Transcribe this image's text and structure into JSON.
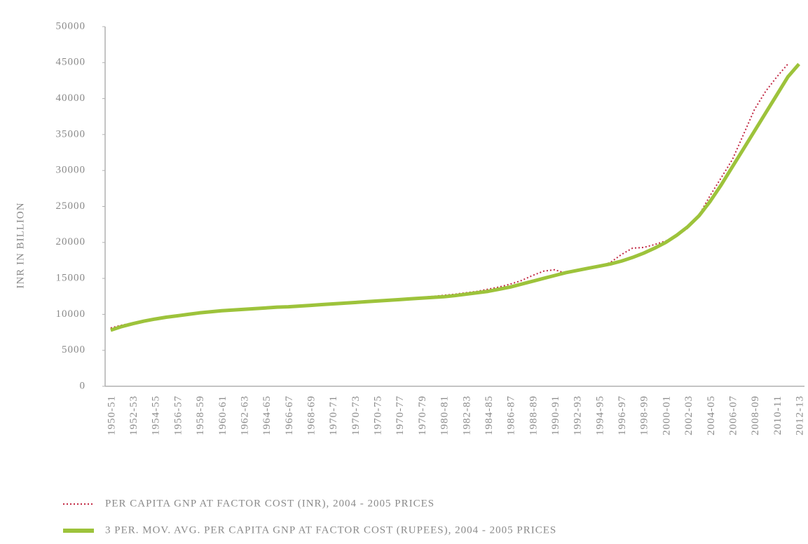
{
  "chart_data": {
    "type": "line",
    "y_label": "INR IN BILLION",
    "categories": [
      "1950-51",
      null,
      "1952-53",
      null,
      "1954-55",
      null,
      "1956-57",
      null,
      "1958-59",
      null,
      "1960-61",
      null,
      "1962-63",
      null,
      "1964-65",
      null,
      "1966-67",
      null,
      "1968-69",
      null,
      "1970-71",
      null,
      "1970-73",
      null,
      "1970-75",
      null,
      "1970-77",
      null,
      "1970-79",
      null,
      "1980-81",
      null,
      "1982-83",
      null,
      "1984-85",
      null,
      "1986-87",
      null,
      "1988-89",
      null,
      "1990-91",
      null,
      "1992-93",
      null,
      "1994-95",
      null,
      "1996-97",
      null,
      "1998-99",
      null,
      "2000-01",
      null,
      "2002-03",
      null,
      "2004-05",
      null,
      "2006-07",
      null,
      "2008-09",
      null,
      "2010-11",
      null,
      "2012-13"
    ],
    "series": [
      {
        "name": "PER CAPITA GNP AT FACTOR COST (INR), 2004 - 2005 PRICES",
        "color": "#c22a45",
        "style": "dotted",
        "values": [
          8100,
          8500,
          8800,
          9100,
          9400,
          9650,
          9850,
          10050,
          10250,
          10450,
          10600,
          10700,
          10800,
          10900,
          11000,
          11100,
          11150,
          11200,
          11300,
          11400,
          11500,
          11600,
          11700,
          11800,
          11900,
          12000,
          12100,
          12200,
          12350,
          12500,
          12650,
          12800,
          13000,
          13200,
          13500,
          13800,
          14200,
          14700,
          15400,
          16000,
          16200,
          15700,
          16000,
          16300,
          16700,
          17200,
          18300,
          19200,
          19300,
          19700,
          20200,
          20900,
          22000,
          23800,
          26500,
          29000,
          31500,
          35000,
          38500,
          41000,
          43000,
          44800,
          null
        ]
      },
      {
        "name": "3 PER. MOV. AVG. PER CAPITA GNP AT FACTOR COST (RUPEES), 2004 - 2005 PRICES",
        "color": "#9dc33b",
        "style": "solid",
        "values": [
          7800,
          8300,
          8700,
          9050,
          9350,
          9600,
          9800,
          10000,
          10200,
          10350,
          10500,
          10600,
          10700,
          10800,
          10900,
          11000,
          11050,
          11150,
          11250,
          11350,
          11450,
          11550,
          11650,
          11750,
          11850,
          11950,
          12050,
          12150,
          12250,
          12350,
          12450,
          12600,
          12800,
          13000,
          13200,
          13500,
          13800,
          14200,
          14600,
          15000,
          15400,
          15800,
          16100,
          16400,
          16700,
          17000,
          17400,
          17900,
          18500,
          19200,
          20000,
          21000,
          22200,
          23700,
          25700,
          28000,
          30500,
          33000,
          35500,
          38000,
          40500,
          43000,
          44800
        ]
      }
    ],
    "ylim": [
      0,
      50000
    ],
    "yticks": [
      0,
      5000,
      10000,
      15000,
      20000,
      25000,
      30000,
      35000,
      40000,
      45000,
      50000
    ],
    "grid": false,
    "legend": "bottom"
  }
}
